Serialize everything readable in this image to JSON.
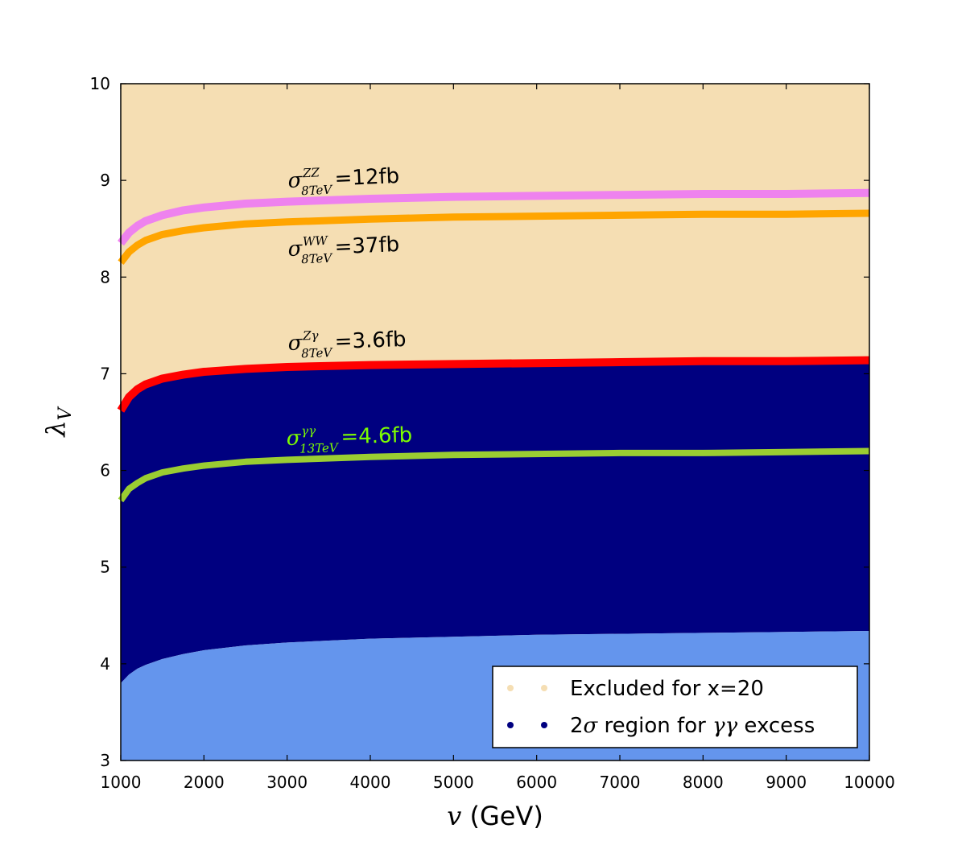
{
  "chart_data": {
    "type": "area",
    "title": "",
    "xlabel_symbol": "v",
    "xlabel_unit": "(GeV)",
    "ylabel_symbol": "λ",
    "ylabel_subscript": "V",
    "xlim": [
      1000,
      10000
    ],
    "ylim": [
      3,
      10
    ],
    "xticks": [
      "1000",
      "2000",
      "3000",
      "4000",
      "5000",
      "6000",
      "7000",
      "8000",
      "9000",
      "10000"
    ],
    "yticks": [
      "3",
      "4",
      "5",
      "6",
      "7",
      "8",
      "9",
      "10"
    ],
    "x": [
      1000,
      1100,
      1200,
      1300,
      1500,
      1750,
      2000,
      2500,
      3000,
      4000,
      5000,
      6000,
      7000,
      8000,
      9000,
      10000
    ],
    "series": [
      {
        "name": "sigma_ZZ_8TeV_12fb",
        "color": "#ee82ee",
        "values": [
          8.35,
          8.46,
          8.53,
          8.58,
          8.64,
          8.69,
          8.72,
          8.76,
          8.78,
          8.81,
          8.83,
          8.84,
          8.85,
          8.86,
          8.86,
          8.87
        ]
      },
      {
        "name": "sigma_WW_8TeV_37fb",
        "color": "#ffa500",
        "values": [
          8.15,
          8.26,
          8.33,
          8.38,
          8.44,
          8.48,
          8.51,
          8.55,
          8.57,
          8.6,
          8.62,
          8.63,
          8.64,
          8.65,
          8.65,
          8.66
        ]
      },
      {
        "name": "sigma_Zgamma_8TeV_3.6fb",
        "color": "#ff0000",
        "values": [
          6.62,
          6.76,
          6.84,
          6.89,
          6.95,
          6.99,
          7.02,
          7.05,
          7.07,
          7.09,
          7.1,
          7.11,
          7.12,
          7.13,
          7.13,
          7.14
        ]
      },
      {
        "name": "sigma_gammagamma_13TeV_4.6fb",
        "color": "#9acd32",
        "values": [
          5.69,
          5.81,
          5.87,
          5.92,
          5.98,
          6.02,
          6.05,
          6.09,
          6.11,
          6.14,
          6.16,
          6.17,
          6.18,
          6.18,
          6.19,
          6.2
        ]
      },
      {
        "name": "lower_boundary_2sigma",
        "color": "#6495ed",
        "values": [
          3.8,
          3.89,
          3.95,
          3.99,
          4.05,
          4.1,
          4.14,
          4.19,
          4.22,
          4.26,
          4.28,
          4.3,
          4.31,
          4.32,
          4.33,
          4.34
        ]
      }
    ],
    "regions": {
      "excluded_color": "#f5deb3",
      "two_sigma_color": "#000080",
      "below_color": "#6495ed"
    },
    "annotations": [
      {
        "series": "sigma_ZZ_8TeV_12fb",
        "sup": "ZZ",
        "sub": "8TeV",
        "value_text": "=12fb",
        "color": "#000000"
      },
      {
        "series": "sigma_WW_8TeV_37fb",
        "sup": "WW",
        "sub": "8TeV",
        "value_text": "=37fb",
        "color": "#000000"
      },
      {
        "series": "sigma_Zgamma_8TeV_3.6fb",
        "sup": "Zγ",
        "sub": "8TeV",
        "value_text": "=3.6fb",
        "color": "#000000"
      },
      {
        "series": "sigma_gammagamma_13TeV_4.6fb",
        "sup": "γγ",
        "sub": "13TeV",
        "value_text": "=4.6fb",
        "color": "#7cfc00"
      }
    ],
    "legend": {
      "placement": "bottom-right",
      "entries": [
        {
          "label": "Excluded for x=20",
          "color": "#f5deb3",
          "marker": "dots"
        },
        {
          "label_prefix": "2",
          "label_sigma": "σ",
          "label_mid": " region for ",
          "label_gamma": "γγ",
          "label_suffix": " excess",
          "color": "#000080",
          "marker": "dots"
        }
      ]
    },
    "grid": false
  }
}
